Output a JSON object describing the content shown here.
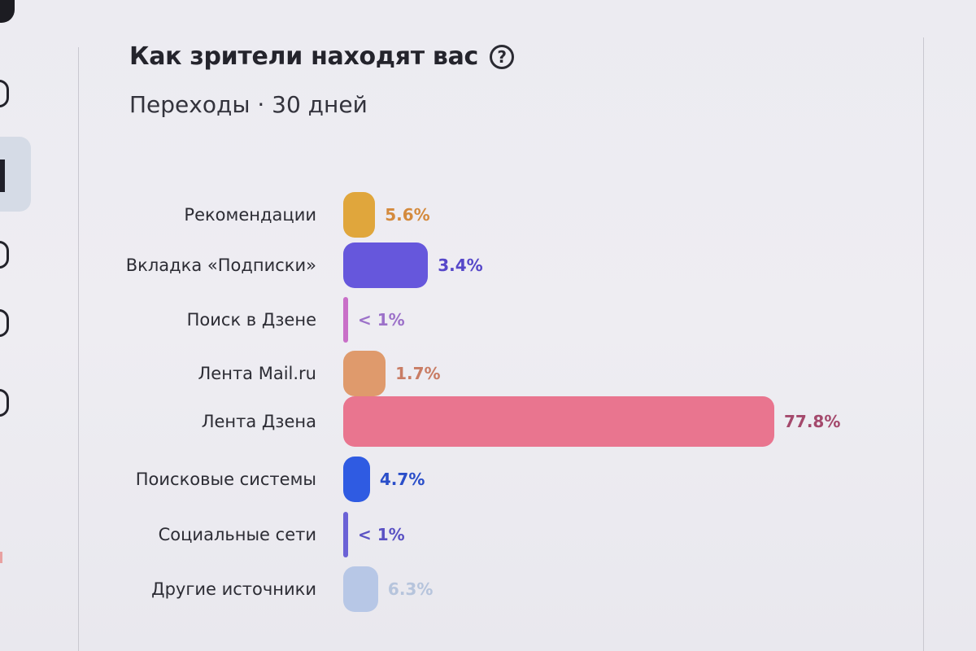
{
  "header": {
    "title": "Как зрители находят вас",
    "help_icon": "question-circle-icon",
    "subtitle": "Переходы · 30 дней"
  },
  "chart_data": {
    "type": "bar",
    "orientation": "horizontal",
    "title": "Как зрители находят вас",
    "subtitle": "Переходы · 30 дней",
    "categories": [
      "Рекомендации",
      "Вкладка «Подписки»",
      "Поиск в Дзене",
      "Лента Mail.ru",
      "Лента Дзена",
      "Поисковые системы",
      "Социальные сети",
      "Другие источники"
    ],
    "values": [
      5.6,
      3.4,
      0.5,
      1.7,
      77.8,
      4.7,
      0.5,
      6.3
    ],
    "value_labels": [
      "5.6%",
      "3.4%",
      "< 1%",
      "1.7%",
      "77.8%",
      "4.7%",
      "< 1%",
      "6.3%"
    ],
    "colors": [
      "#e0a63c",
      "#6657dc",
      "#c96fc8",
      "#df9a6c",
      "#e9758f",
      "#2f5be2",
      "#6b62d6",
      "#b7c7e6"
    ],
    "label_colors": [
      "#d48a3d",
      "#5647c9",
      "#9c71c9",
      "#c97c64",
      "#a4496c",
      "#2a4ec9",
      "#5b52c4",
      "#b6c4dc"
    ],
    "xlim": [
      0,
      77.8
    ],
    "grid": false,
    "legend": "none"
  }
}
